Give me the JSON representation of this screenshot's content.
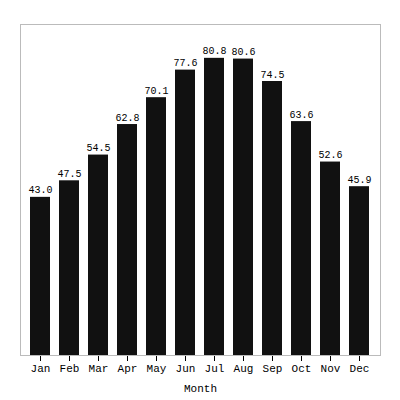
{
  "chart_data": {
    "type": "bar",
    "categories": [
      "Jan",
      "Feb",
      "Mar",
      "Apr",
      "May",
      "Jun",
      "Jul",
      "Aug",
      "Sep",
      "Oct",
      "Nov",
      "Dec"
    ],
    "values": [
      43.0,
      47.5,
      54.5,
      62.8,
      70.1,
      77.6,
      80.8,
      80.6,
      74.5,
      63.6,
      52.6,
      45.9
    ],
    "value_labels": [
      "43.0",
      "47.5",
      "54.5",
      "62.8",
      "70.1",
      "77.6",
      "80.8",
      "80.6",
      "74.5",
      "63.6",
      "52.6",
      "45.9"
    ],
    "color": "#111111",
    "xlabel": "Month",
    "ylim": [
      0,
      90
    ],
    "data_labels": true,
    "tick_labels": "x"
  }
}
